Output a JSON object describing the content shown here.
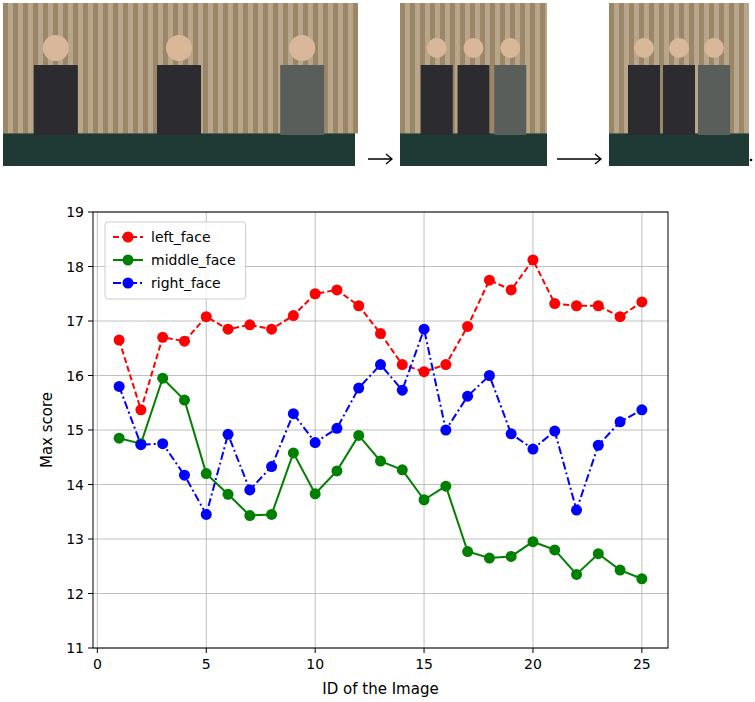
{
  "chart_data": {
    "type": "line",
    "x_label": "ID of the Image",
    "y_label": "Max score",
    "x": [
      1,
      2,
      3,
      4,
      5,
      6,
      7,
      8,
      9,
      10,
      11,
      12,
      13,
      14,
      15,
      16,
      17,
      18,
      19,
      20,
      21,
      22,
      23,
      24,
      25
    ],
    "series": [
      {
        "name": "left_face",
        "color": "#ff0000",
        "line_style": "dashed",
        "marker": "circle",
        "values": [
          16.65,
          15.37,
          16.7,
          16.63,
          17.08,
          16.85,
          16.93,
          16.85,
          17.1,
          17.5,
          17.57,
          17.28,
          16.77,
          16.2,
          16.07,
          16.2,
          16.9,
          17.75,
          17.57,
          18.12,
          17.32,
          17.28,
          17.28,
          17.08,
          17.35
        ]
      },
      {
        "name": "middle_face",
        "color": "#008000",
        "line_style": "solid",
        "marker": "circle",
        "values": [
          14.85,
          14.75,
          15.95,
          15.55,
          14.2,
          13.82,
          13.43,
          13.45,
          14.58,
          13.83,
          14.25,
          14.9,
          14.43,
          14.27,
          13.72,
          13.97,
          12.77,
          12.65,
          12.68,
          12.95,
          12.8,
          12.35,
          12.73,
          12.43,
          12.27
        ]
      },
      {
        "name": "right_face",
        "color": "#0000ff",
        "line_style": "dashdot",
        "marker": "circle",
        "values": [
          15.8,
          14.73,
          14.75,
          14.17,
          13.45,
          14.92,
          13.9,
          14.33,
          15.3,
          14.77,
          15.03,
          15.77,
          16.2,
          15.73,
          16.85,
          15.0,
          15.62,
          16.0,
          14.93,
          14.65,
          14.98,
          13.53,
          14.72,
          15.15,
          15.37
        ]
      }
    ],
    "xlim": [
      -0.2,
      26.2
    ],
    "xticks": [
      0,
      5,
      10,
      15,
      20,
      25
    ],
    "ylim": [
      11,
      19
    ],
    "yticks": [
      11,
      12,
      13,
      14,
      15,
      16,
      17,
      18,
      19
    ],
    "grid": true,
    "legend": "upper left"
  }
}
